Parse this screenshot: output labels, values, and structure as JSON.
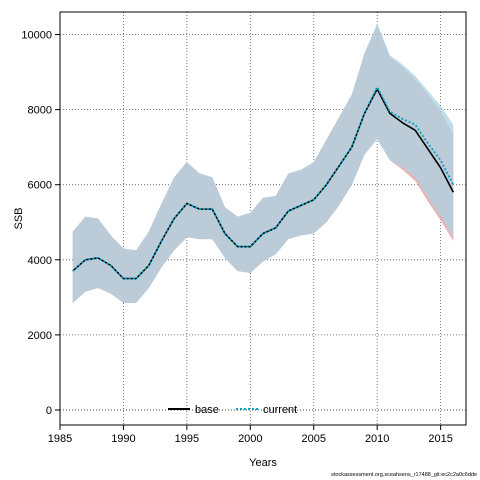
{
  "chart_data": {
    "type": "line",
    "xlabel": "Years",
    "ylabel": "SSB",
    "xlim": [
      1985,
      2017
    ],
    "ylim": [
      -400,
      10600
    ],
    "xticks": [
      1985,
      1990,
      1995,
      2000,
      2005,
      2010,
      2015
    ],
    "yticks": [
      0,
      2000,
      4000,
      6000,
      8000,
      10000
    ],
    "grid": true,
    "zero_line": 0,
    "legend_placement": "bottom-center",
    "x": [
      1986,
      1987,
      1988,
      1989,
      1990,
      1991,
      1992,
      1993,
      1994,
      1995,
      1996,
      1997,
      1998,
      1999,
      2000,
      2001,
      2002,
      2003,
      2004,
      2005,
      2006,
      2007,
      2008,
      2009,
      2010,
      2011,
      2012,
      2013,
      2014,
      2015,
      2016
    ],
    "series": [
      {
        "name": "base",
        "style": "solid",
        "color": "#000000",
        "band_color": "#e8a0a0",
        "values": [
          3700,
          4000,
          4050,
          3850,
          3500,
          3500,
          3850,
          4500,
          5100,
          5500,
          5350,
          5350,
          4700,
          4350,
          4350,
          4700,
          4850,
          5300,
          5450,
          5600,
          6000,
          6500,
          7000,
          7900,
          8550,
          7900,
          7650,
          7450,
          6950,
          6450,
          5800
        ],
        "lower": [
          2850,
          3150,
          3250,
          3100,
          2850,
          2850,
          3250,
          3800,
          4250,
          4600,
          4550,
          4550,
          4050,
          3700,
          3650,
          3950,
          4150,
          4550,
          4650,
          4700,
          5000,
          5450,
          6000,
          6800,
          7250,
          6650,
          6400,
          6100,
          5550,
          5050,
          4500
        ],
        "upper": [
          4750,
          5150,
          5100,
          4650,
          4300,
          4250,
          4750,
          5500,
          6200,
          6600,
          6300,
          6200,
          5400,
          5150,
          5250,
          5650,
          5700,
          6300,
          6400,
          6600,
          7200,
          7800,
          8400,
          9500,
          10250,
          9400,
          9150,
          8800,
          8400,
          7950,
          7350
        ]
      },
      {
        "name": "current",
        "style": "dotted",
        "color": "#00a2c4",
        "band_color": "#a9d3e3",
        "values": [
          3700,
          4000,
          4050,
          3850,
          3500,
          3500,
          3850,
          4500,
          5100,
          5500,
          5350,
          5350,
          4700,
          4350,
          4350,
          4700,
          4850,
          5300,
          5450,
          5600,
          6000,
          6500,
          7000,
          7900,
          8600,
          7950,
          7750,
          7600,
          7100,
          6650,
          6000
        ],
        "lower": [
          2850,
          3150,
          3250,
          3100,
          2850,
          2850,
          3250,
          3800,
          4250,
          4600,
          4550,
          4550,
          4050,
          3700,
          3650,
          3950,
          4150,
          4550,
          4650,
          4700,
          5000,
          5450,
          6000,
          6800,
          7200,
          6650,
          6450,
          6200,
          5650,
          5150,
          4600
        ],
        "upper": [
          4750,
          5150,
          5100,
          4650,
          4300,
          4250,
          4750,
          5500,
          6200,
          6600,
          6300,
          6200,
          5400,
          5150,
          5250,
          5650,
          5700,
          6300,
          6400,
          6600,
          7200,
          7800,
          8400,
          9500,
          10300,
          9450,
          9200,
          8900,
          8500,
          8100,
          7600
        ]
      }
    ],
    "legend_entries": [
      {
        "label": "base",
        "style": "solid",
        "color": "#000000"
      },
      {
        "label": "current",
        "style": "dotted",
        "color": "#00a2c4"
      }
    ]
  },
  "footer_text": "stockassessment.org,sceahsens_r17488_git:ec2c2a0c6dde"
}
